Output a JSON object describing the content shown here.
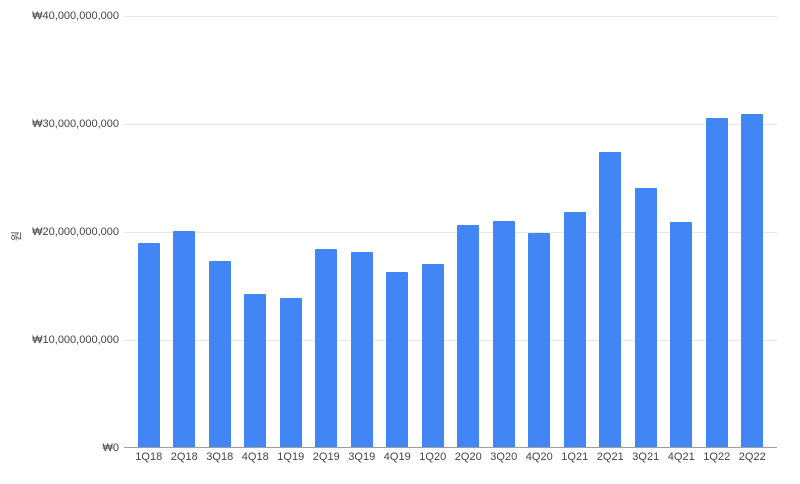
{
  "chart_data": {
    "type": "bar",
    "title": "",
    "ylabel": "원",
    "xlabel": "",
    "ylim": [
      0,
      40000000000
    ],
    "grid": true,
    "legend_position": "none",
    "categories": [
      "1Q18",
      "2Q18",
      "3Q18",
      "4Q18",
      "1Q19",
      "2Q19",
      "3Q19",
      "4Q19",
      "1Q20",
      "2Q20",
      "3Q20",
      "4Q20",
      "1Q21",
      "2Q21",
      "3Q21",
      "4Q21",
      "1Q22",
      "2Q22"
    ],
    "values": [
      18900000000,
      20000000000,
      17300000000,
      14200000000,
      13800000000,
      18400000000,
      18100000000,
      16200000000,
      17000000000,
      20600000000,
      21000000000,
      19900000000,
      21800000000,
      27400000000,
      24000000000,
      20900000000,
      30500000000,
      30900000000
    ],
    "y_ticks": [
      {
        "value": 0,
        "label": "₩0"
      },
      {
        "value": 10000000000,
        "label": "₩10,000,000,000"
      },
      {
        "value": 20000000000,
        "label": "₩20,000,000,000"
      },
      {
        "value": 30000000000,
        "label": "₩30,000,000,000"
      },
      {
        "value": 40000000000,
        "label": "₩40,000,000,000"
      }
    ],
    "colors": {
      "bar": "#4285f4",
      "background": "#ffffff",
      "label": "#444444",
      "gridline": "#e6e6e6",
      "baseline": "#9e9e9e"
    }
  }
}
